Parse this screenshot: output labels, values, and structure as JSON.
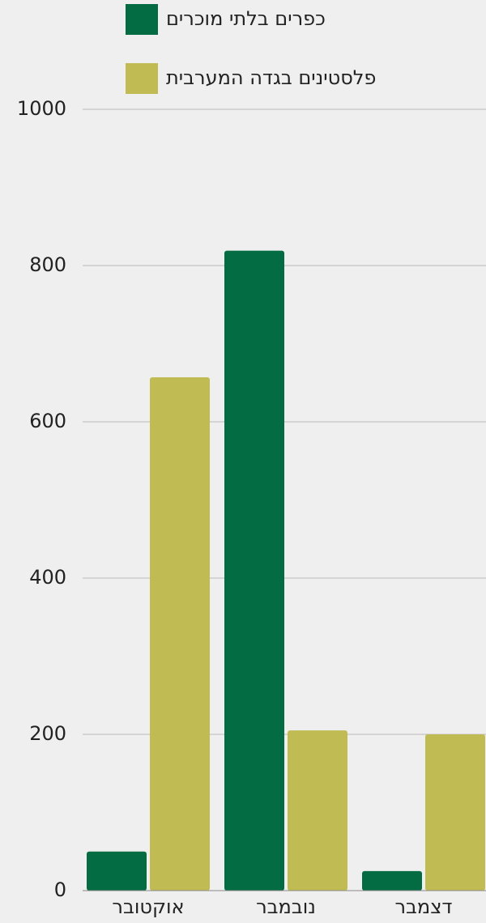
{
  "chart_data": {
    "type": "bar",
    "categories": [
      "אוקטובר",
      "נובמבר",
      "דצמבר"
    ],
    "series": [
      {
        "name": "כפרים בלתי מוכרים",
        "color": "#046c43",
        "values": [
          50,
          819,
          25
        ]
      },
      {
        "name": "פלסטינים בגדה המערבית",
        "color": "#c0bb52",
        "values": [
          657,
          205,
          200
        ]
      }
    ],
    "ylim": [
      0,
      1000
    ],
    "yticks": [
      0,
      200,
      400,
      600,
      800,
      1000
    ],
    "grid": true
  }
}
